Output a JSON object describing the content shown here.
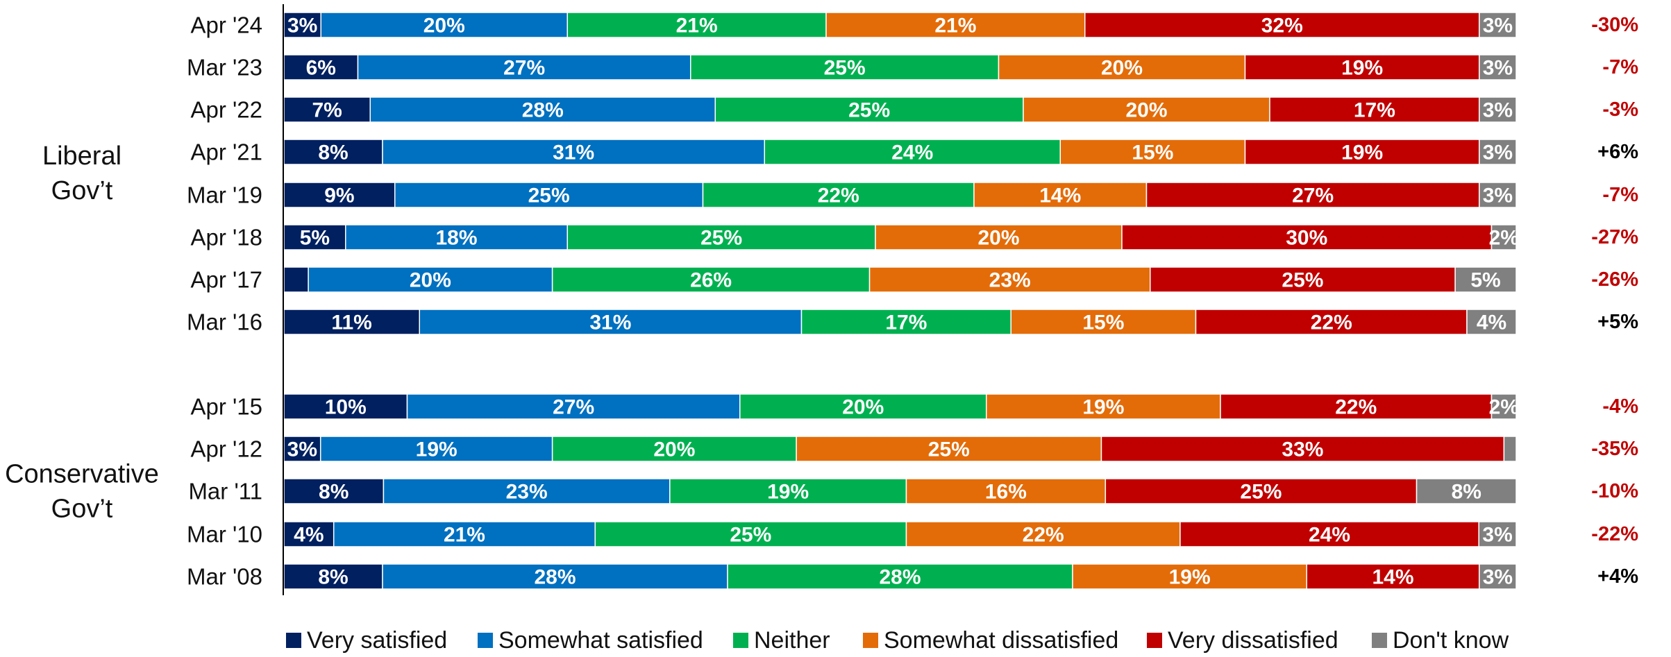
{
  "chart_data": {
    "type": "bar",
    "orientation": "horizontal",
    "stacked": true,
    "normalized_percent": true,
    "categories": [
      "Apr '24",
      "Mar '23",
      "Apr '22",
      "Apr '21",
      "Mar '19",
      "Apr '18",
      "Apr '17",
      "Mar '16",
      "Apr '15",
      "Apr '12",
      "Mar '11",
      "Mar '10",
      "Mar '08"
    ],
    "groups": [
      {
        "name": "Liberal\nGov't",
        "lines": [
          "Liberal",
          "Gov’t"
        ],
        "categories": [
          "Apr '24",
          "Mar '23",
          "Apr '22",
          "Apr '21",
          "Mar '19",
          "Apr '18",
          "Apr '17",
          "Mar '16"
        ]
      },
      {
        "name": "Conservative\nGov't",
        "lines": [
          "Conservative",
          "Gov’t"
        ],
        "categories": [
          "Apr '15",
          "Apr '12",
          "Mar '11",
          "Mar '10",
          "Mar '08"
        ]
      }
    ],
    "series": [
      {
        "name": "Very satisfied",
        "color": "#002060",
        "values": [
          3,
          6,
          7,
          8,
          9,
          5,
          2,
          11,
          10,
          3,
          8,
          4,
          8
        ],
        "labels": [
          "3%",
          "6%",
          "7%",
          "8%",
          "9%",
          "5%",
          "",
          "11%",
          "10%",
          "3%",
          "8%",
          "4%",
          "8%"
        ]
      },
      {
        "name": "Somewhat satisfied",
        "color": "#0070C0",
        "values": [
          20,
          27,
          28,
          31,
          25,
          18,
          20,
          31,
          27,
          19,
          23,
          21,
          28
        ],
        "labels": [
          "20%",
          "27%",
          "28%",
          "31%",
          "25%",
          "18%",
          "20%",
          "31%",
          "27%",
          "19%",
          "23%",
          "21%",
          "28%"
        ]
      },
      {
        "name": "Neither",
        "color": "#00B050",
        "values": [
          21,
          25,
          25,
          24,
          22,
          25,
          26,
          17,
          20,
          20,
          19,
          25,
          28
        ],
        "labels": [
          "21%",
          "25%",
          "25%",
          "24%",
          "22%",
          "25%",
          "26%",
          "17%",
          "20%",
          "20%",
          "19%",
          "25%",
          "28%"
        ]
      },
      {
        "name": "Somewhat dissatisfied",
        "color": "#E36C09",
        "values": [
          21,
          20,
          20,
          15,
          14,
          20,
          23,
          15,
          19,
          25,
          16,
          22,
          19
        ],
        "labels": [
          "21%",
          "20%",
          "20%",
          "15%",
          "14%",
          "20%",
          "23%",
          "15%",
          "19%",
          "25%",
          "16%",
          "22%",
          "19%"
        ]
      },
      {
        "name": "Very dissatisfied",
        "color": "#C00000",
        "values": [
          32,
          19,
          17,
          19,
          27,
          30,
          25,
          22,
          22,
          33,
          25,
          24,
          14
        ],
        "labels": [
          "32%",
          "19%",
          "17%",
          "19%",
          "27%",
          "30%",
          "25%",
          "22%",
          "22%",
          "33%",
          "25%",
          "24%",
          "14%"
        ]
      },
      {
        "name": "Don't know",
        "color": "#808080",
        "values": [
          3,
          3,
          3,
          3,
          3,
          2,
          5,
          4,
          2,
          1,
          8,
          3,
          3
        ],
        "labels": [
          "3%",
          "3%",
          "3%",
          "3%",
          "3%",
          "2%",
          "5%",
          "4%",
          "2%",
          "",
          "8%",
          "3%",
          "3%"
        ]
      }
    ],
    "net": {
      "values": [
        "-30%",
        "-7%",
        "-3%",
        "+6%",
        "-7%",
        "-27%",
        "-26%",
        "+5%",
        "-4%",
        "-35%",
        "-10%",
        "-22%",
        "+4%"
      ],
      "negative_color": "#C00000",
      "positive_color": "#000000"
    },
    "legend": {
      "position": "bottom"
    },
    "grid": false,
    "xlim": [
      0,
      100
    ]
  }
}
